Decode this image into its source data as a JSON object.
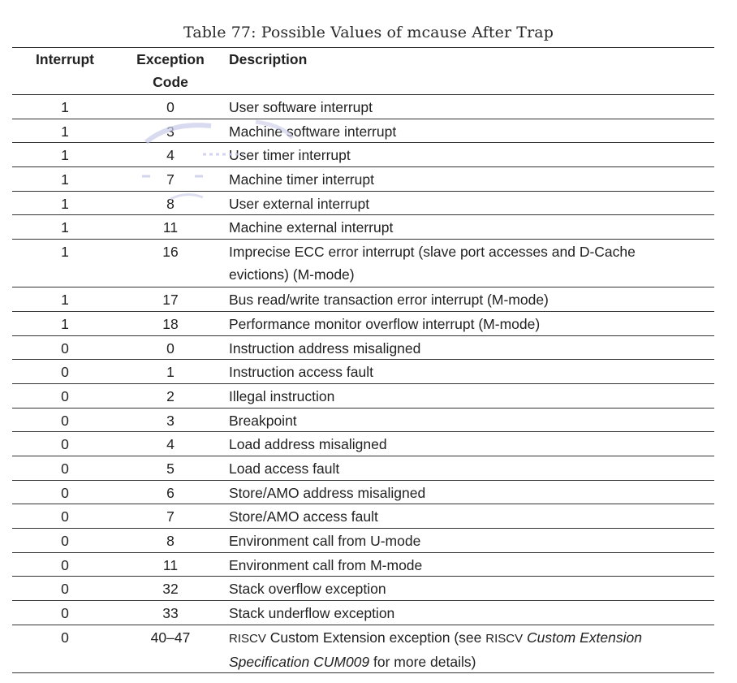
{
  "caption": "Table 77: Possible Values of mcause After Trap",
  "headers": {
    "interrupt": "Interrupt",
    "exception_code_line1": "Exception",
    "exception_code_line2": "Code",
    "description": "Description"
  },
  "rows": [
    {
      "interrupt": "1",
      "code": "0",
      "description": "User software interrupt"
    },
    {
      "interrupt": "1",
      "code": "3",
      "description": "Machine software interrupt"
    },
    {
      "interrupt": "1",
      "code": "4",
      "description": "User timer interrupt"
    },
    {
      "interrupt": "1",
      "code": "7",
      "description": "Machine timer interrupt"
    },
    {
      "interrupt": "1",
      "code": "8",
      "description": "User external interrupt"
    },
    {
      "interrupt": "1",
      "code": "11",
      "description": "Machine external interrupt"
    },
    {
      "interrupt": "1",
      "code": "16",
      "description_line1": "Imprecise ECC error interrupt (slave port accesses and D-Cache",
      "description_line2": "evictions) (M-mode)"
    },
    {
      "interrupt": "1",
      "code": "17",
      "description": "Bus read/write transaction error interrupt (M-mode)"
    },
    {
      "interrupt": "1",
      "code": "18",
      "description": "Performance monitor overflow interrupt (M-mode)"
    },
    {
      "interrupt": "0",
      "code": "0",
      "description": "Instruction address misaligned"
    },
    {
      "interrupt": "0",
      "code": "1",
      "description": "Instruction access fault"
    },
    {
      "interrupt": "0",
      "code": "2",
      "description": "Illegal instruction"
    },
    {
      "interrupt": "0",
      "code": "3",
      "description": "Breakpoint"
    },
    {
      "interrupt": "0",
      "code": "4",
      "description": "Load address misaligned"
    },
    {
      "interrupt": "0",
      "code": "5",
      "description": "Load access fault"
    },
    {
      "interrupt": "0",
      "code": "6",
      "description": "Store/AMO address misaligned"
    },
    {
      "interrupt": "0",
      "code": "7",
      "description": "Store/AMO access fault"
    },
    {
      "interrupt": "0",
      "code": "8",
      "description": "Environment call from U-mode"
    },
    {
      "interrupt": "0",
      "code": "11",
      "description": "Environment call from M-mode"
    },
    {
      "interrupt": "0",
      "code": "32",
      "description": "Stack overflow exception"
    },
    {
      "interrupt": "0",
      "code": "33",
      "description": "Stack underflow exception"
    },
    {
      "interrupt": "0",
      "code": "40–47",
      "desc_riscv1": "RISCV",
      "desc_mid": " Custom Extension exception (see ",
      "desc_riscv2": "RISCV",
      "desc_italic1": " Custom Extension",
      "desc_italic2": "Specification CUM009",
      "desc_tail": " for more details)"
    }
  ]
}
